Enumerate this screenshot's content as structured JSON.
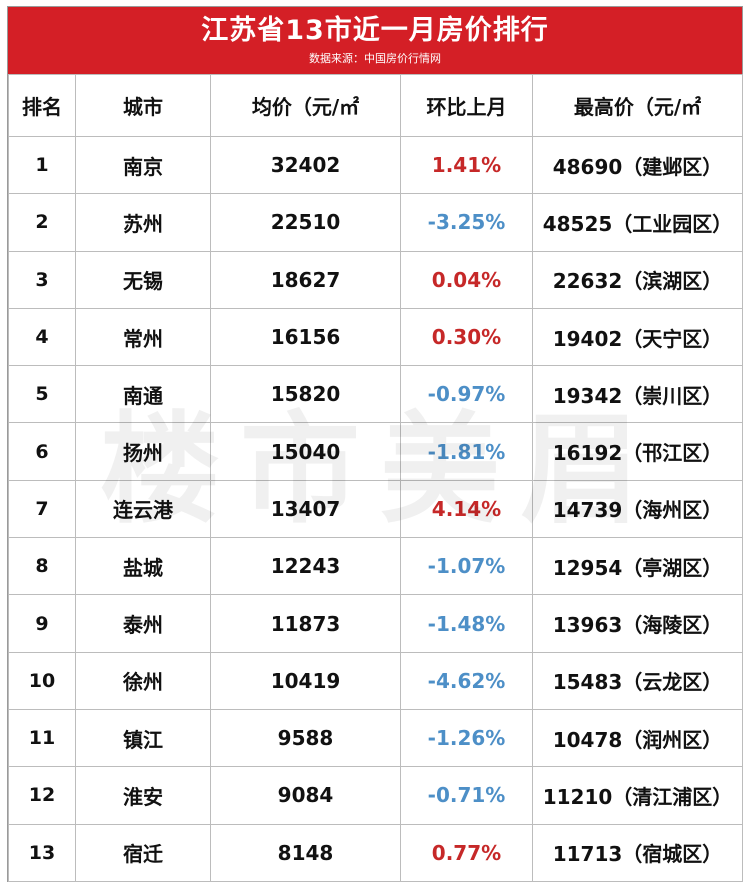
{
  "header": {
    "title": "江苏省13市近一月房价排行",
    "source": "数据来源：中国房价行情网"
  },
  "columns": [
    "排名",
    "城市",
    "均价（元/㎡",
    "环比上月",
    "最高价（元/㎡"
  ],
  "watermark": "楼市美眉",
  "colors": {
    "header_bg": "#d41f26",
    "increase": "#c62828",
    "decrease": "#4d8fc7"
  },
  "rows": [
    {
      "rank": "1",
      "city": "南京",
      "avg": "32402",
      "change": "1.41%",
      "trend": "up",
      "max": "48690（建邺区）"
    },
    {
      "rank": "2",
      "city": "苏州",
      "avg": "22510",
      "change": "-3.25%",
      "trend": "down",
      "max": "48525（工业园区）"
    },
    {
      "rank": "3",
      "city": "无锡",
      "avg": "18627",
      "change": "0.04%",
      "trend": "up",
      "max": "22632（滨湖区）"
    },
    {
      "rank": "4",
      "city": "常州",
      "avg": "16156",
      "change": "0.30%",
      "trend": "up",
      "max": "19402（天宁区）"
    },
    {
      "rank": "5",
      "city": "南通",
      "avg": "15820",
      "change": "-0.97%",
      "trend": "down",
      "max": "19342（崇川区）"
    },
    {
      "rank": "6",
      "city": "扬州",
      "avg": "15040",
      "change": "-1.81%",
      "trend": "down",
      "max": "16192（邗江区）"
    },
    {
      "rank": "7",
      "city": "连云港",
      "avg": "13407",
      "change": "4.14%",
      "trend": "up",
      "max": "14739（海州区）"
    },
    {
      "rank": "8",
      "city": "盐城",
      "avg": "12243",
      "change": "-1.07%",
      "trend": "down",
      "max": "12954（亭湖区）"
    },
    {
      "rank": "9",
      "city": "泰州",
      "avg": "11873",
      "change": "-1.48%",
      "trend": "down",
      "max": "13963（海陵区）"
    },
    {
      "rank": "10",
      "city": "徐州",
      "avg": "10419",
      "change": "-4.62%",
      "trend": "down",
      "max": "15483（云龙区）"
    },
    {
      "rank": "11",
      "city": "镇江",
      "avg": "9588",
      "change": "-1.26%",
      "trend": "down",
      "max": "10478（润州区）"
    },
    {
      "rank": "12",
      "city": "淮安",
      "avg": "9084",
      "change": "-0.71%",
      "trend": "down",
      "max": "11210（清江浦区）"
    },
    {
      "rank": "13",
      "city": "宿迁",
      "avg": "8148",
      "change": "0.77%",
      "trend": "up",
      "max": "11713（宿城区）"
    }
  ]
}
